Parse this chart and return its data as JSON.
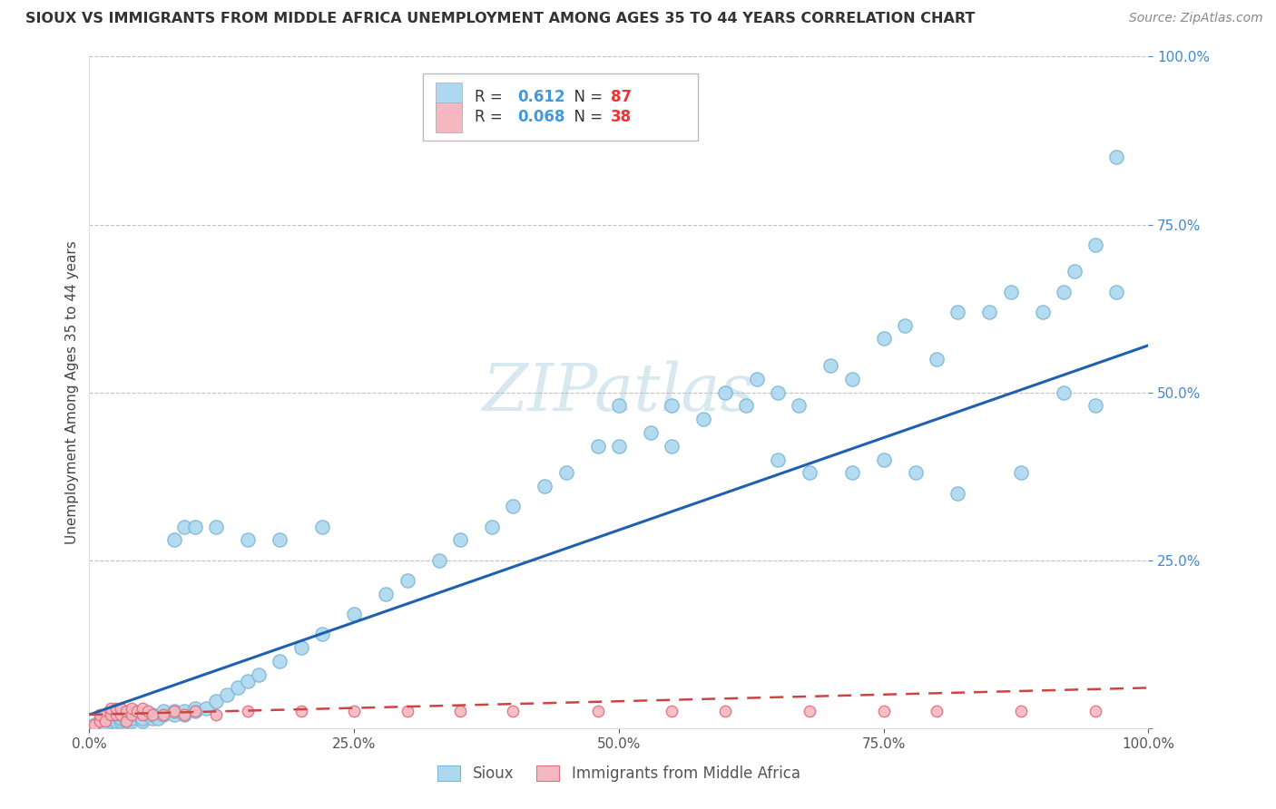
{
  "title": "SIOUX VS IMMIGRANTS FROM MIDDLE AFRICA UNEMPLOYMENT AMONG AGES 35 TO 44 YEARS CORRELATION CHART",
  "source": "Source: ZipAtlas.com",
  "ylabel": "Unemployment Among Ages 35 to 44 years",
  "sioux_R": 0.612,
  "sioux_N": 87,
  "immig_R": 0.068,
  "immig_N": 38,
  "sioux_color": "#ADD8F0",
  "sioux_edge_color": "#7BB8D8",
  "immig_color": "#F5B8C0",
  "immig_edge_color": "#E07080",
  "sioux_line_color": "#2060B0",
  "immig_line_color": "#CC4444",
  "watermark_color": "#D8E8F0",
  "bg_color": "#FFFFFF",
  "grid_color": "#BBBBBB",
  "tick_color": "#4488CC",
  "xlim": [
    0.0,
    1.0
  ],
  "ylim": [
    0.0,
    1.0
  ],
  "sioux_slope": 0.55,
  "sioux_intercept": 0.02,
  "immig_slope": 0.04,
  "immig_intercept": 0.02,
  "sioux_x": [
    0.005,
    0.01,
    0.015,
    0.02,
    0.02,
    0.025,
    0.025,
    0.03,
    0.03,
    0.035,
    0.04,
    0.04,
    0.045,
    0.05,
    0.05,
    0.055,
    0.06,
    0.06,
    0.065,
    0.07,
    0.07,
    0.08,
    0.08,
    0.09,
    0.09,
    0.1,
    0.1,
    0.11,
    0.12,
    0.13,
    0.14,
    0.15,
    0.16,
    0.18,
    0.2,
    0.22,
    0.25,
    0.28,
    0.3,
    0.33,
    0.35,
    0.38,
    0.4,
    0.43,
    0.45,
    0.48,
    0.5,
    0.5,
    0.53,
    0.55,
    0.55,
    0.58,
    0.6,
    0.62,
    0.63,
    0.65,
    0.67,
    0.7,
    0.72,
    0.75,
    0.77,
    0.8,
    0.82,
    0.85,
    0.87,
    0.9,
    0.92,
    0.93,
    0.95,
    0.97,
    0.08,
    0.09,
    0.1,
    0.12,
    0.15,
    0.18,
    0.22,
    0.65,
    0.68,
    0.72,
    0.75,
    0.78,
    0.82,
    0.88,
    0.92,
    0.95,
    0.97
  ],
  "sioux_y": [
    0.005,
    0.01,
    0.005,
    0.01,
    0.015,
    0.01,
    0.02,
    0.01,
    0.015,
    0.01,
    0.01,
    0.015,
    0.02,
    0.01,
    0.015,
    0.02,
    0.015,
    0.02,
    0.015,
    0.02,
    0.025,
    0.02,
    0.025,
    0.02,
    0.025,
    0.025,
    0.03,
    0.03,
    0.04,
    0.05,
    0.06,
    0.07,
    0.08,
    0.1,
    0.12,
    0.14,
    0.17,
    0.2,
    0.22,
    0.25,
    0.28,
    0.3,
    0.33,
    0.36,
    0.38,
    0.42,
    0.42,
    0.48,
    0.44,
    0.42,
    0.48,
    0.46,
    0.5,
    0.48,
    0.52,
    0.5,
    0.48,
    0.54,
    0.52,
    0.58,
    0.6,
    0.55,
    0.62,
    0.62,
    0.65,
    0.62,
    0.65,
    0.68,
    0.72,
    0.65,
    0.28,
    0.3,
    0.3,
    0.3,
    0.28,
    0.28,
    0.3,
    0.4,
    0.38,
    0.38,
    0.4,
    0.38,
    0.35,
    0.38,
    0.5,
    0.48,
    0.85
  ],
  "immig_x": [
    0.005,
    0.01,
    0.01,
    0.015,
    0.02,
    0.02,
    0.025,
    0.025,
    0.03,
    0.03,
    0.035,
    0.035,
    0.04,
    0.04,
    0.045,
    0.05,
    0.05,
    0.055,
    0.06,
    0.07,
    0.08,
    0.09,
    0.1,
    0.12,
    0.15,
    0.2,
    0.25,
    0.3,
    0.35,
    0.4,
    0.48,
    0.55,
    0.6,
    0.68,
    0.75,
    0.8,
    0.88,
    0.95
  ],
  "immig_y": [
    0.005,
    0.01,
    0.02,
    0.01,
    0.02,
    0.03,
    0.02,
    0.03,
    0.02,
    0.03,
    0.01,
    0.025,
    0.02,
    0.03,
    0.025,
    0.02,
    0.03,
    0.025,
    0.02,
    0.02,
    0.025,
    0.02,
    0.025,
    0.02,
    0.025,
    0.025,
    0.025,
    0.025,
    0.025,
    0.025,
    0.025,
    0.025,
    0.025,
    0.025,
    0.025,
    0.025,
    0.025,
    0.025
  ]
}
